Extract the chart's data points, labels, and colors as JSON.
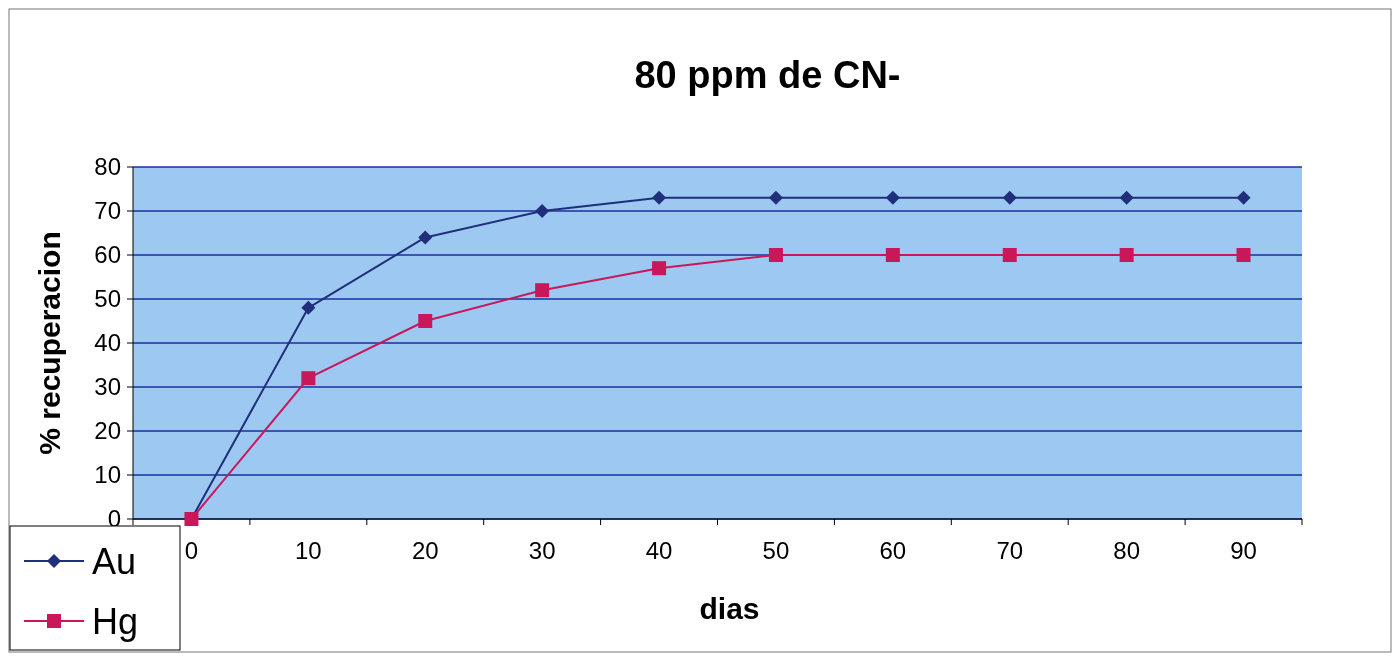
{
  "chart_data": {
    "type": "line",
    "title": "80 ppm de CN-",
    "xlabel": "dias",
    "ylabel": "% recuperacion",
    "categories": [
      "0",
      "10",
      "20",
      "30",
      "40",
      "50",
      "60",
      "70",
      "80",
      "90"
    ],
    "series": [
      {
        "name": "Au",
        "color": "#1f2f7a",
        "marker": "diamond",
        "values": [
          0,
          48,
          64,
          70,
          73,
          73,
          73,
          73,
          73,
          73
        ]
      },
      {
        "name": "Hg",
        "color": "#c8185a",
        "marker": "square",
        "values": [
          0,
          32,
          45,
          52,
          57,
          60,
          60,
          60,
          60,
          60
        ]
      }
    ],
    "ylim": [
      0,
      80
    ],
    "yticks": [
      0,
      10,
      20,
      30,
      40,
      50,
      60,
      70,
      80
    ],
    "grid": "y",
    "legend": "bottom left"
  }
}
